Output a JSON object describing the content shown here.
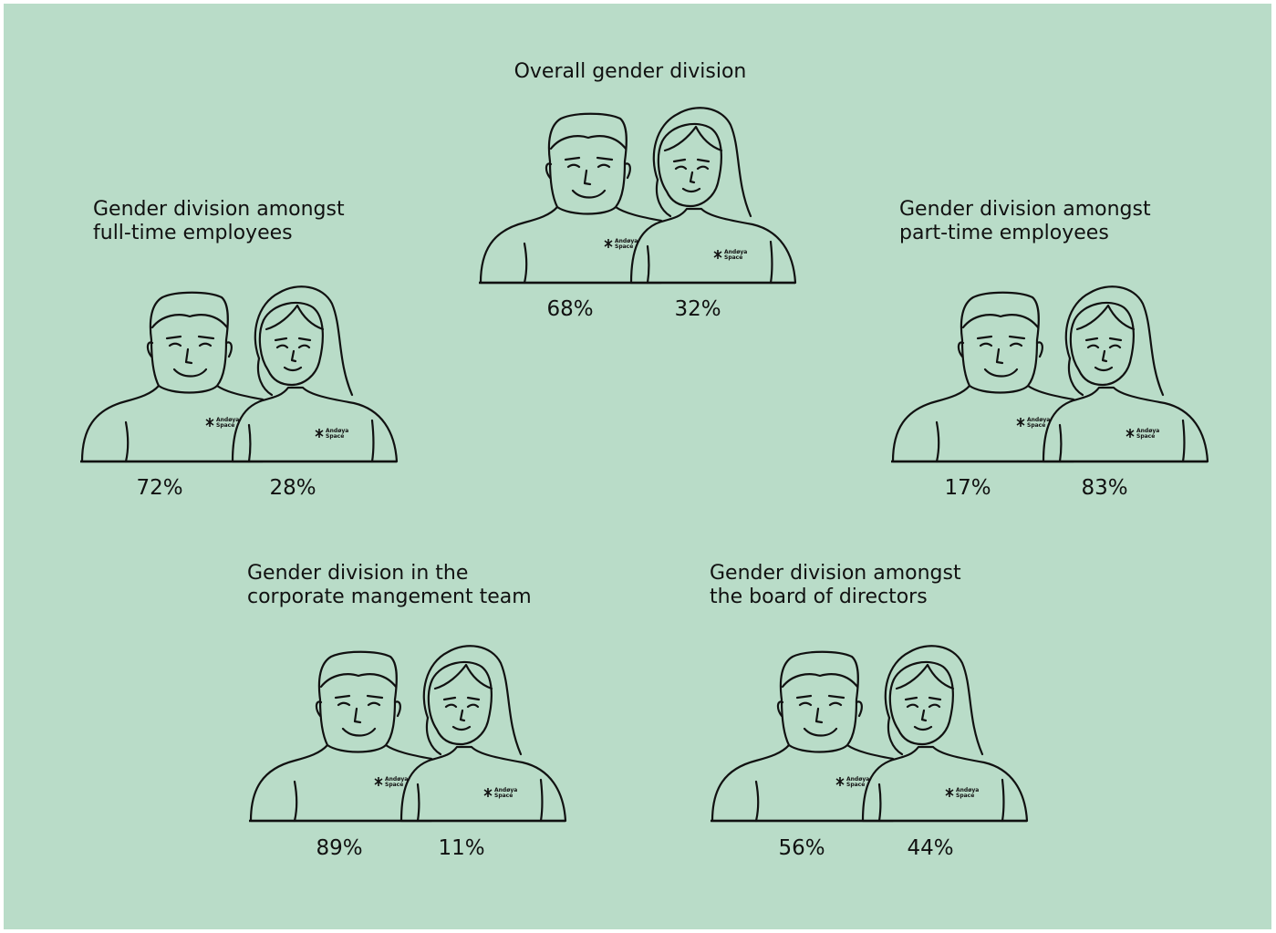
{
  "panels": [
    {
      "title_lines": [
        "Overall gender division"
      ],
      "men": "68%",
      "women": "32%"
    },
    {
      "title_lines": [
        "Gender division amongst",
        "full-time employees"
      ],
      "men": "72%",
      "women": "28%"
    },
    {
      "title_lines": [
        "Gender division amongst",
        "part-time employees"
      ],
      "men": "17%",
      "women": "83%"
    },
    {
      "title_lines": [
        "Gender division in the",
        "corporate mangement team"
      ],
      "men": "89%",
      "women": "11%"
    },
    {
      "title_lines": [
        "Gender division amongst",
        "the board of directors"
      ],
      "men": "56%",
      "women": "44%"
    }
  ],
  "logo": [
    "Andøya",
    "Space"
  ]
}
